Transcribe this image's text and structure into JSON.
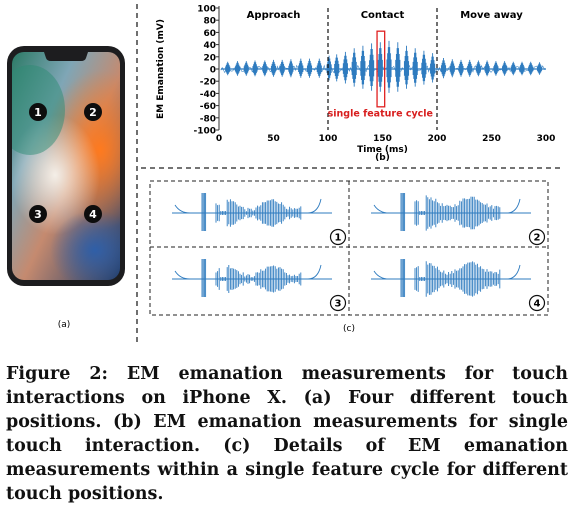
{
  "panel_a": {
    "touch_markers": [
      "1",
      "2",
      "3",
      "4"
    ],
    "label": "(a)"
  },
  "chart_data": [
    {
      "type": "line",
      "panel_label": "(b)",
      "xlabel": "Time (ms)",
      "ylabel": "EM Emanation (mV)",
      "xlim": [
        0,
        300
      ],
      "ylim": [
        -100,
        100
      ],
      "x_ticks": [
        "0",
        "50",
        "100",
        "150",
        "200",
        "250",
        "300"
      ],
      "y_ticks": [
        "100",
        "80",
        "60",
        "40",
        "20",
        "0",
        "-20",
        "-40",
        "-60",
        "-80",
        "-100"
      ],
      "phase_boundaries_ms": [
        100,
        200
      ],
      "phase_labels": [
        "Approach",
        "Contact",
        "Move away"
      ],
      "highlight": {
        "x_range_ms": [
          145,
          152
        ],
        "label": "single feature cycle"
      },
      "spike_times_ms": [
        8,
        17,
        25,
        33,
        42,
        50,
        58,
        66,
        75,
        83,
        92,
        101,
        108,
        116,
        124,
        132,
        140,
        148,
        156,
        164,
        172,
        180,
        188,
        196,
        206,
        214,
        222,
        230,
        238,
        246,
        254,
        262,
        270,
        278,
        286,
        294
      ],
      "spike_amplitudes_mv": [
        12,
        13,
        13,
        14,
        14,
        15,
        15,
        16,
        17,
        17,
        17,
        22,
        24,
        28,
        34,
        38,
        42,
        44,
        46,
        44,
        38,
        34,
        30,
        26,
        18,
        16,
        15,
        15,
        14,
        14,
        13,
        13,
        12,
        12,
        12,
        11
      ],
      "baseline_mv": 0,
      "colors": {
        "signal": "#2e7bbf",
        "highlight": "#e02020",
        "highlight_label": "#d81e1e"
      }
    }
  ],
  "panel_c": {
    "label": "(c)",
    "cycles": [
      {
        "position": "1"
      },
      {
        "position": "2"
      },
      {
        "position": "3"
      },
      {
        "position": "4"
      }
    ]
  },
  "caption": "Figure 2: EM emanation measurements for touch interactions on iPhone X. (a) Four different touch positions. (b) EM emanation measurements for single touch interaction. (c) Details of EM emanation measurements within a single feature cycle for different touch positions."
}
